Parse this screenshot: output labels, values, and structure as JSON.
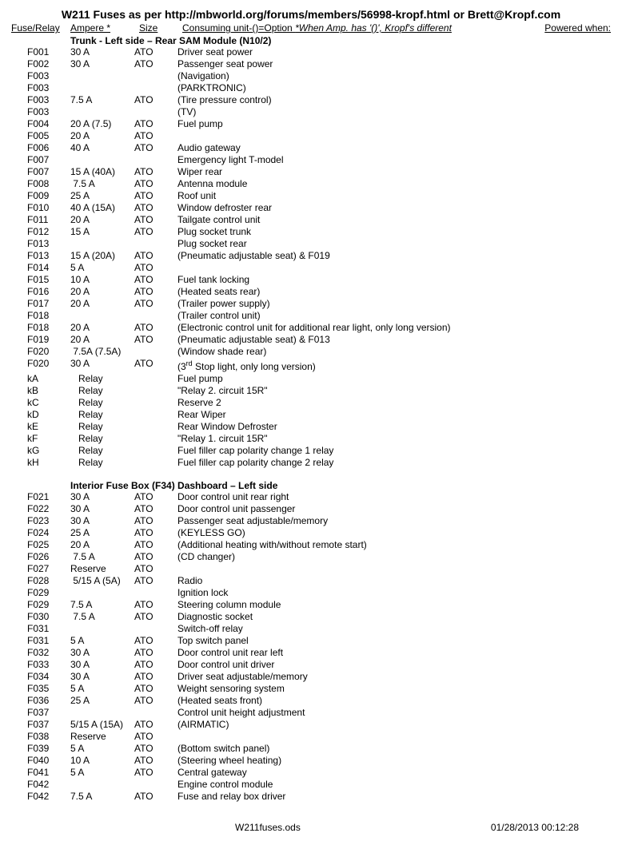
{
  "title": "W211 Fuses as per http://mbworld.org/forums/members/56998-kropf.html or Brett@Kropf.com",
  "headers": {
    "fuse": "Fuse/Relay",
    "amp": "Ampere *",
    "size": "Size",
    "consuming_prefix": "Consuming unit-()=Option ",
    "consuming_italic": "*When Amp. has '()', Kropf's different",
    "powered": "Powered when:"
  },
  "sections": [
    {
      "title": "Trunk - Left side – Rear SAM Module (N10/2)",
      "rows": [
        {
          "f": "F001",
          "a": "30 A",
          "s": "ATO",
          "c": "Driver seat power"
        },
        {
          "f": "F002",
          "a": "30 A",
          "s": "ATO",
          "c": "Passenger seat power"
        },
        {
          "f": "F003",
          "a": "",
          "s": "",
          "c": "(Navigation)"
        },
        {
          "f": "F003",
          "a": "",
          "s": "",
          "c": "(PARKTRONIC)"
        },
        {
          "f": "F003",
          "a": "7.5 A",
          "s": "ATO",
          "c": "(Tire pressure control)",
          "rowspan_note": "amp/size apply to group"
        },
        {
          "f": "F003",
          "a": "",
          "s": "",
          "c": "(TV)"
        },
        {
          "f": "F004",
          "a": "20 A (7.5)",
          "s": "ATO",
          "c": "Fuel pump"
        },
        {
          "f": "F005",
          "a": "20 A",
          "s": "ATO",
          "c": ""
        },
        {
          "f": "F006",
          "a": "40 A",
          "s": "ATO",
          "c": "Audio gateway"
        },
        {
          "f": "F007",
          "a": "",
          "s": "",
          "c": "Emergency light T-model"
        },
        {
          "f": "F007",
          "a": "15 A (40A)",
          "s": "ATO",
          "c": "Wiper rear"
        },
        {
          "f": "F008",
          "a": " 7.5 A",
          "s": "ATO",
          "c": "Antenna module"
        },
        {
          "f": "F009",
          "a": "25 A",
          "s": "ATO",
          "c": "Roof unit"
        },
        {
          "f": "F010",
          "a": "40 A (15A)",
          "s": "ATO",
          "c": "Window defroster rear"
        },
        {
          "f": "F011",
          "a": "20 A",
          "s": "ATO",
          "c": "Tailgate control unit"
        },
        {
          "f": "F012",
          "a": "15 A",
          "s": "ATO",
          "c": "Plug socket trunk"
        },
        {
          "f": "F013",
          "a": "",
          "s": "",
          "c": "Plug socket rear"
        },
        {
          "f": "F013",
          "a": "15 A (20A)",
          "s": "ATO",
          "c": "(Pneumatic adjustable seat) & F019"
        },
        {
          "f": "F014",
          "a": "5 A",
          "s": "ATO",
          "c": ""
        },
        {
          "f": "F015",
          "a": "10 A",
          "s": "ATO",
          "c": "Fuel tank locking"
        },
        {
          "f": "F016",
          "a": "20 A",
          "s": "ATO",
          "c": "(Heated seats rear)"
        },
        {
          "f": "F017",
          "a": "20 A",
          "s": "ATO",
          "c": "(Trailer power supply)"
        },
        {
          "f": "F018",
          "a": "",
          "s": "",
          "c": "(Trailer control unit)"
        },
        {
          "f": "F018",
          "a": "20 A",
          "s": "ATO",
          "c": "(Electronic control unit for additional rear light, only long version)"
        },
        {
          "f": "F019",
          "a": "20 A",
          "s": "ATO",
          "c": "(Pneumatic adjustable seat) & F013"
        },
        {
          "f": "F020",
          "a": " 7.5A (7.5A)",
          "s": "",
          "c": "(Window shade rear)"
        },
        {
          "f": "F020",
          "a": "30 A",
          "s": "ATO",
          "c": "(3rd Stop light, only long version)",
          "sup": "rd"
        },
        {
          "f": "kA",
          "a": "   Relay",
          "s": "",
          "c": "Fuel pump"
        },
        {
          "f": "kB",
          "a": "   Relay",
          "s": "",
          "c": "\"Relay 2. circuit 15R\""
        },
        {
          "f": "kC",
          "a": "   Relay",
          "s": "",
          "c": "Reserve 2"
        },
        {
          "f": "kD",
          "a": "   Relay",
          "s": "",
          "c": "Rear Wiper"
        },
        {
          "f": "kE",
          "a": "   Relay",
          "s": "",
          "c": "Rear Window Defroster"
        },
        {
          "f": "kF",
          "a": "   Relay",
          "s": "",
          "c": "\"Relay 1. circuit 15R\""
        },
        {
          "f": "kG",
          "a": "   Relay",
          "s": "",
          "c": "Fuel filler cap polarity change 1 relay"
        },
        {
          "f": "kH",
          "a": "   Relay",
          "s": "",
          "c": "Fuel filler cap polarity change 2 relay"
        }
      ]
    },
    {
      "title": "Interior Fuse Box (F34) Dashboard – Left side",
      "rows": [
        {
          "f": "F021",
          "a": "30 A",
          "s": "ATO",
          "c": "Door control unit rear right"
        },
        {
          "f": "F022",
          "a": "30 A",
          "s": "ATO",
          "c": "Door control unit passenger"
        },
        {
          "f": "F023",
          "a": "30 A",
          "s": "ATO",
          "c": "Passenger seat adjustable/memory"
        },
        {
          "f": "F024",
          "a": "25 A",
          "s": "ATO",
          "c": "(KEYLESS GO)"
        },
        {
          "f": "F025",
          "a": "20 A",
          "s": "ATO",
          "c": "(Additional heating with/without remote start)"
        },
        {
          "f": "F026",
          "a": " 7.5 A",
          "s": "ATO",
          "c": "(CD changer)"
        },
        {
          "f": "F027",
          "a": "Reserve",
          "s": "ATO",
          "c": ""
        },
        {
          "f": "F028",
          "a": " 5/15 A (5A)",
          "s": "ATO",
          "c": "Radio"
        },
        {
          "f": "F029",
          "a": "",
          "s": "",
          "c": "Ignition lock"
        },
        {
          "f": "F029",
          "a": "7.5 A",
          "s": "ATO",
          "c": "Steering column module"
        },
        {
          "f": "F030",
          "a": " 7.5 A",
          "s": "ATO",
          "c": "Diagnostic socket"
        },
        {
          "f": "F031",
          "a": "",
          "s": "",
          "c": "Switch-off relay"
        },
        {
          "f": "F031",
          "a": "5 A",
          "s": "ATO",
          "c": "Top switch panel"
        },
        {
          "f": "F032",
          "a": "30 A",
          "s": "ATO",
          "c": "Door control unit rear left"
        },
        {
          "f": "F033",
          "a": "30 A",
          "s": "ATO",
          "c": "Door control unit driver"
        },
        {
          "f": "F034",
          "a": "30 A",
          "s": "ATO",
          "c": "Driver seat adjustable/memory"
        },
        {
          "f": "F035",
          "a": "5 A",
          "s": "ATO",
          "c": "Weight sensoring system"
        },
        {
          "f": "F036",
          "a": "25 A",
          "s": "ATO",
          "c": "(Heated seats front)"
        },
        {
          "f": "F037",
          "a": "",
          "s": "",
          "c": "Control unit height adjustment"
        },
        {
          "f": "F037",
          "a": "5/15 A (15A)",
          "s": "ATO",
          "c": "(AIRMATIC)"
        },
        {
          "f": "F038",
          "a": "Reserve",
          "s": "ATO",
          "c": ""
        },
        {
          "f": "F039",
          "a": "5 A",
          "s": "ATO",
          "c": "(Bottom switch panel)"
        },
        {
          "f": "F040",
          "a": "10 A",
          "s": "ATO",
          "c": "(Steering wheel heating)"
        },
        {
          "f": "F041",
          "a": "5 A",
          "s": "ATO",
          "c": "Central gateway"
        },
        {
          "f": "F042",
          "a": "",
          "s": "",
          "c": "Engine control module"
        },
        {
          "f": "F042",
          "a": "7.5 A",
          "s": "ATO",
          "c": "Fuse and relay box driver"
        }
      ]
    }
  ],
  "footer": {
    "file": "W211fuses.ods",
    "date": "01/28/2013 00:12:28"
  },
  "style": {
    "text_color": "#000000",
    "bg_color": "#ffffff",
    "body_fontsize": 12,
    "title_fontsize": 14,
    "line_height": 15,
    "col_widths": {
      "fuse": 74,
      "amp": 80,
      "size": 54
    }
  }
}
